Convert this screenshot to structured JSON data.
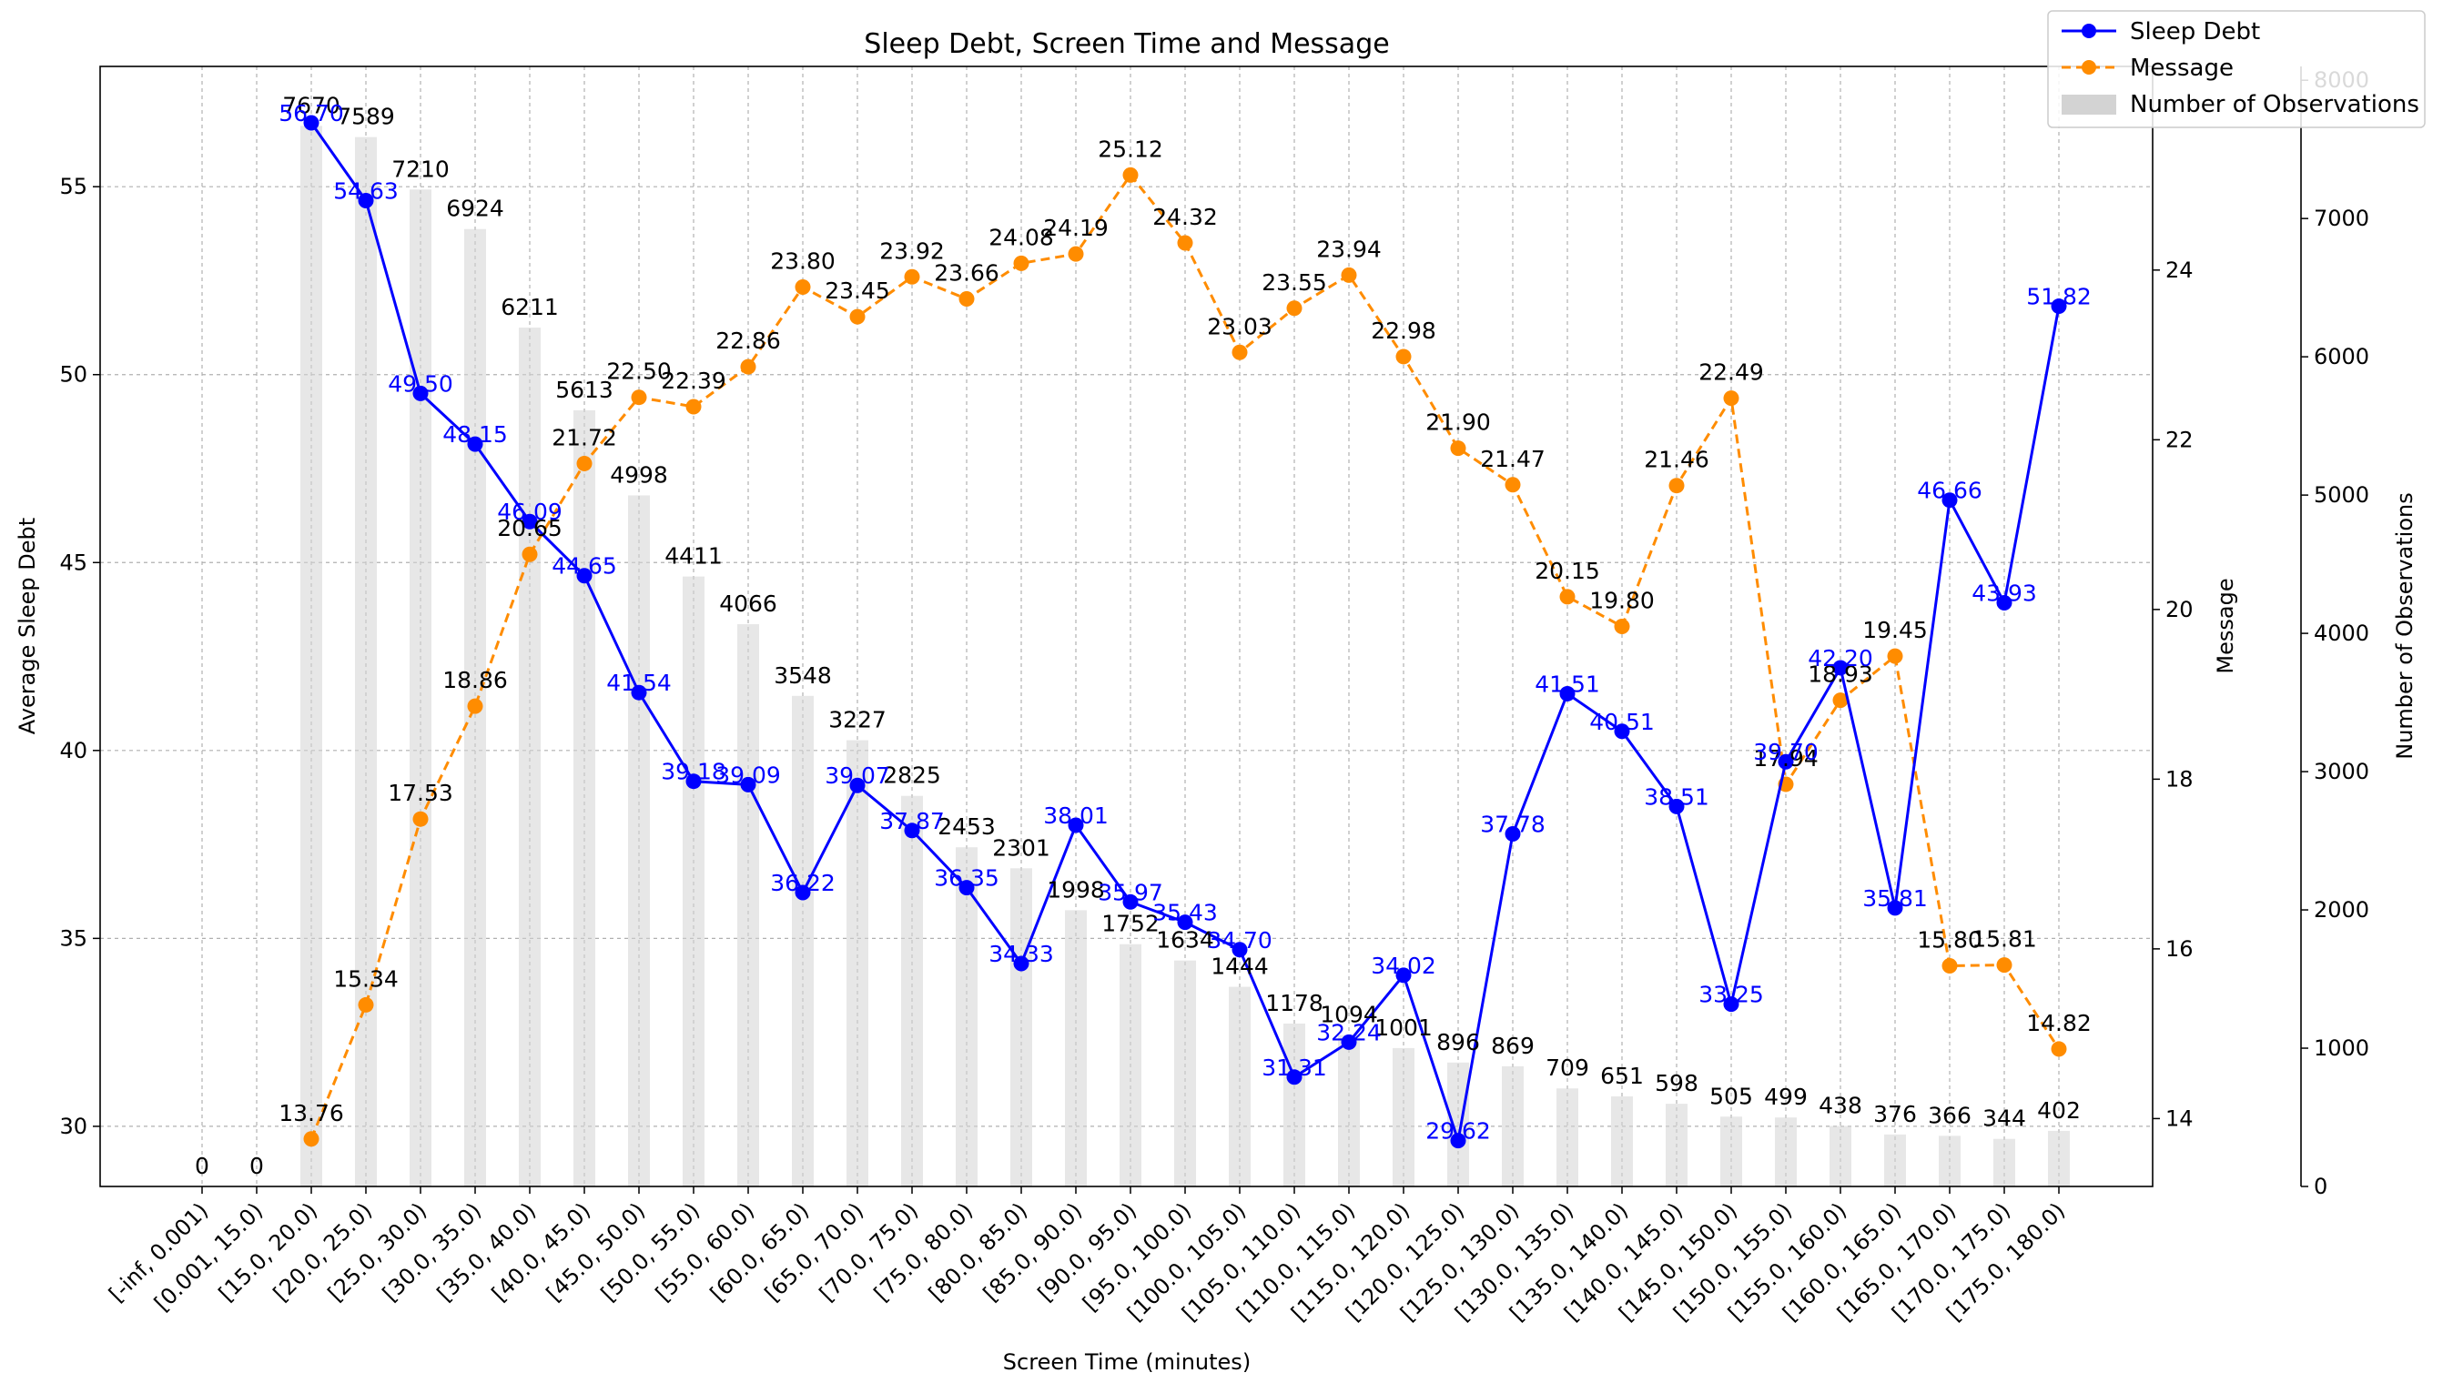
{
  "chart_data": {
    "type": "bar+line",
    "title": "Sleep Debt, Screen Time and Message",
    "xlabel": "Screen Time (minutes)",
    "ylabel_left": "Average Sleep Debt",
    "ylabel_right1": "Message",
    "ylabel_right2": "Number of Observations",
    "ylim_left": [
      28.4,
      58.2
    ],
    "ylim_right1": [
      13.2,
      26.4
    ],
    "ylim_right2": [
      0,
      8100
    ],
    "left_ticks": [
      30,
      35,
      40,
      45,
      50,
      55
    ],
    "right1_ticks": [
      14,
      16,
      18,
      20,
      22,
      24
    ],
    "right2_ticks": [
      0,
      1000,
      2000,
      3000,
      4000,
      5000,
      6000,
      7000,
      8000
    ],
    "grid": true,
    "legend_position": "top-right",
    "categories": [
      "[-inf, 0.001)",
      "[0.001, 15.0)",
      "[15.0, 20.0)",
      "[20.0, 25.0)",
      "[25.0, 30.0)",
      "[30.0, 35.0)",
      "[35.0, 40.0)",
      "[40.0, 45.0)",
      "[45.0, 50.0)",
      "[50.0, 55.0)",
      "[55.0, 60.0)",
      "[60.0, 65.0)",
      "[65.0, 70.0)",
      "[70.0, 75.0)",
      "[75.0, 80.0)",
      "[80.0, 85.0)",
      "[85.0, 90.0)",
      "[90.0, 95.0)",
      "[95.0, 100.0)",
      "[100.0, 105.0)",
      "[105.0, 110.0)",
      "[110.0, 115.0)",
      "[115.0, 120.0)",
      "[120.0, 125.0)",
      "[125.0, 130.0)",
      "[130.0, 135.0)",
      "[135.0, 140.0)",
      "[140.0, 145.0)",
      "[145.0, 150.0)",
      "[150.0, 155.0)",
      "[155.0, 160.0)",
      "[160.0, 165.0)",
      "[165.0, 170.0)",
      "[170.0, 175.0)",
      "[175.0, 180.0)"
    ],
    "series": [
      {
        "name": "Sleep Debt",
        "axis": "left",
        "color": "#0000ff",
        "style": "solid-line-with-dots",
        "values": [
          null,
          null,
          56.7,
          54.63,
          49.5,
          48.15,
          46.09,
          44.65,
          41.54,
          39.18,
          39.09,
          36.22,
          39.07,
          37.87,
          36.35,
          34.33,
          38.01,
          35.97,
          35.43,
          34.7,
          31.31,
          32.24,
          34.02,
          29.62,
          37.78,
          41.51,
          40.51,
          38.51,
          33.25,
          39.7,
          42.2,
          35.81,
          46.66,
          43.93,
          51.82
        ],
        "labels": [
          "",
          "",
          "56.70",
          "54.63",
          "49.50",
          "48.15",
          "46.09",
          "44.65",
          "41.54",
          "39.18",
          "39.09",
          "36.22",
          "39.07",
          "37.87",
          "36.35",
          "34.33",
          "38.01",
          "35.97",
          "35.43",
          "34.70",
          "31.31",
          "32.24",
          "34.02",
          "29.62",
          "37.78",
          "41.51",
          "40.51",
          "38.51",
          "33.25",
          "39.70",
          "42.20",
          "35.81",
          "46.66",
          "43.93",
          "51.82"
        ]
      },
      {
        "name": "Message",
        "axis": "right1",
        "color": "#ff8c00",
        "style": "dashed-line-with-dots",
        "values": [
          null,
          null,
          13.76,
          15.34,
          17.53,
          18.86,
          20.65,
          21.72,
          22.5,
          22.39,
          22.86,
          23.8,
          23.45,
          23.92,
          23.66,
          24.08,
          24.19,
          25.12,
          24.32,
          23.03,
          23.55,
          23.94,
          22.98,
          21.9,
          21.47,
          20.15,
          19.8,
          21.46,
          22.49,
          17.94,
          18.93,
          19.45,
          15.8,
          15.81,
          14.82
        ],
        "labels": [
          "",
          "",
          "13.76",
          "15.34",
          "17.53",
          "18.86",
          "20.65",
          "21.72",
          "22.50",
          "22.39",
          "22.86",
          "23.80",
          "23.45",
          "23.92",
          "23.66",
          "24.08",
          "24.19",
          "25.12",
          "24.32",
          "23.03",
          "23.55",
          "23.94",
          "22.98",
          "21.90",
          "21.47",
          "20.15",
          "19.80",
          "21.46",
          "22.49",
          "17.94",
          "18.93",
          "19.45",
          "15.80",
          "15.81",
          "14.82"
        ]
      },
      {
        "name": "Number of Observations",
        "axis": "right2",
        "color": "#d3d3d3",
        "style": "bar",
        "values": [
          0,
          0,
          7670,
          7589,
          7210,
          6924,
          6211,
          5613,
          4998,
          4411,
          4066,
          3548,
          3227,
          2825,
          2453,
          2301,
          1998,
          1752,
          1634,
          1444,
          1178,
          1094,
          1001,
          896,
          869,
          709,
          651,
          598,
          505,
          499,
          438,
          376,
          366,
          344,
          402
        ],
        "labels": [
          "0",
          "0",
          "7670",
          "7589",
          "7210",
          "6924",
          "6211",
          "5613",
          "4998",
          "4411",
          "4066",
          "3548",
          "3227",
          "2825",
          "2453",
          "2301",
          "1998",
          "1752",
          "1634",
          "1444",
          "1178",
          "1094",
          "1001",
          "896",
          "869",
          "709",
          "651",
          "598",
          "505",
          "499",
          "438",
          "376",
          "366",
          "344",
          "402"
        ]
      }
    ]
  }
}
